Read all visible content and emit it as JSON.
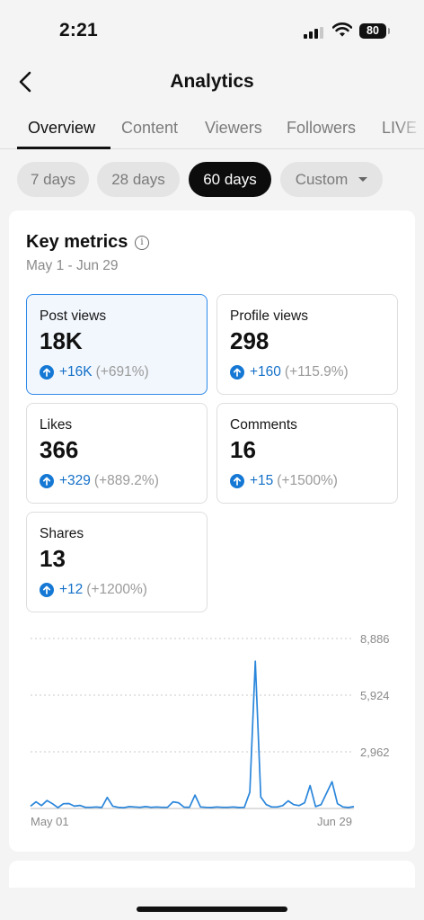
{
  "status": {
    "time": "2:21",
    "battery": "80"
  },
  "header": {
    "title": "Analytics"
  },
  "tabs": [
    "Overview",
    "Content",
    "Viewers",
    "Followers",
    "LIVE"
  ],
  "date_ranges": [
    "7 days",
    "28 days",
    "60 days",
    "Custom"
  ],
  "selected_range": "60 days",
  "key_metrics": {
    "title": "Key metrics",
    "range": "May 1 - Jun 29",
    "items": [
      {
        "label": "Post views",
        "value": "18K",
        "delta": "+16K",
        "pct": "(+691%)"
      },
      {
        "label": "Profile views",
        "value": "298",
        "delta": "+160",
        "pct": "(+115.9%)"
      },
      {
        "label": "Likes",
        "value": "366",
        "delta": "+329",
        "pct": "(+889.2%)"
      },
      {
        "label": "Comments",
        "value": "16",
        "delta": "+15",
        "pct": "(+1500%)"
      },
      {
        "label": "Shares",
        "value": "13",
        "delta": "+12",
        "pct": "(+1200%)"
      }
    ]
  },
  "colors": {
    "accent": "#1478d4",
    "selected_border": "#2f8ae8",
    "selected_bg": "#f2f7fd",
    "line": "#2a86db"
  },
  "chart_data": {
    "type": "line",
    "x_start": "May 01",
    "x_end": "Jun 29",
    "xticks": [
      "May 01",
      "Jun 29"
    ],
    "yticks": [
      2962,
      5924,
      8886
    ],
    "ytick_labels": [
      "2,962",
      "5,924",
      "8,886"
    ],
    "ylim": [
      0,
      8886
    ],
    "grid": true,
    "series": [
      {
        "values": [
          120,
          350,
          150,
          420,
          250,
          40,
          250,
          260,
          120,
          160,
          60,
          60,
          80,
          50,
          580,
          120,
          60,
          40,
          100,
          80,
          60,
          100,
          60,
          80,
          60,
          60,
          350,
          300,
          70,
          60,
          700,
          80,
          60,
          50,
          80,
          60,
          60,
          80,
          50,
          60,
          850,
          7700,
          600,
          200,
          80,
          80,
          150,
          400,
          200,
          150,
          300,
          1200,
          100,
          200,
          800,
          1400,
          250,
          80,
          50,
          100
        ]
      }
    ]
  }
}
